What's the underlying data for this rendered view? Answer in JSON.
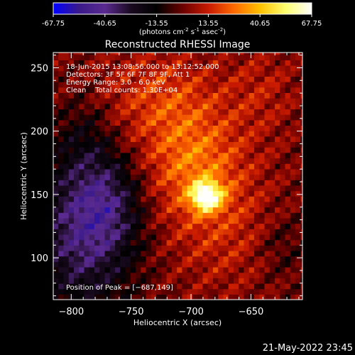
{
  "colorbar": {
    "ticks": [
      "-67.75",
      "-40.65",
      "-13.55",
      "13.55",
      "40.65",
      "67.75"
    ],
    "tick_values": [
      -67.75,
      -40.65,
      -13.55,
      13.55,
      40.65,
      67.75
    ],
    "unit_parts": [
      "(photons cm",
      "-2",
      " s",
      "-1",
      " asec",
      "-2",
      ")"
    ],
    "colors": [
      "#0000ff",
      "#3a1a8a",
      "#5a2a90",
      "#1a0a20",
      "#000000",
      "#6a0000",
      "#c81a00",
      "#ff6a00",
      "#ffc000",
      "#ffff70",
      "#ffffff"
    ]
  },
  "chart_data": {
    "type": "heatmap",
    "title": "Reconstructed RHESSI Image",
    "xlabel": "Heliocentric X (arcsec)",
    "ylabel": "Heliocentric Y (arcsec)",
    "xlim": [
      -815,
      -607
    ],
    "ylim": [
      67,
      262
    ],
    "x_ticks": [
      -800,
      -750,
      -700,
      -650
    ],
    "y_ticks": [
      100,
      150,
      200,
      250
    ],
    "x_tick_labels": [
      "−800",
      "−750",
      "−700",
      "−650"
    ],
    "y_tick_labels": [
      "100",
      "150",
      "200",
      "250"
    ],
    "value_range": [
      -67.75,
      67.75
    ],
    "peak": {
      "x": -687,
      "y": 149
    },
    "annotations": [
      "18-Jun-2015 13:08:56.000 to 13:12:52.000",
      "Detectors: 3F 5F 6F 7F 8F 9F, Att 1",
      "Energy Range: 3.0 - 6.0 keV",
      "Clean    Total counts: 1.30E+04"
    ],
    "peak_label": "Position of Peak = [−687,149]"
  },
  "footer": {
    "timestamp": "21-May-2022 23:45"
  }
}
